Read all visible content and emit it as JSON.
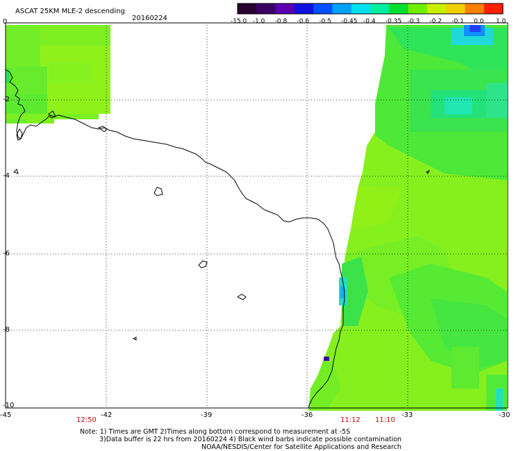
{
  "header": {
    "product": "ASCAT 25KM MLE-2 descending",
    "date": "20160224"
  },
  "colorbar": {
    "labels": [
      "-15.0",
      "-1.0",
      "-0.8",
      "-0.6",
      "-0.5",
      "-0.45",
      "-0.4",
      "-0.35",
      "-0.3",
      "-0.2",
      "-0.1",
      "0.0",
      "1.0"
    ],
    "colors": [
      "#2a0030",
      "#3a0066",
      "#5a00b0",
      "#1010e0",
      "#0050ff",
      "#00a0ff",
      "#00e0f0",
      "#00f0a0",
      "#00e030",
      "#70f000",
      "#c8f000",
      "#f0d000",
      "#ff8000",
      "#ff2000"
    ]
  },
  "axes": {
    "y_ticks": [
      "0",
      "-2",
      "-4",
      "-6",
      "-8",
      "-10"
    ],
    "x_ticks": [
      "-45",
      "-42",
      "-39",
      "-36",
      "-33",
      "-30"
    ]
  },
  "pass_times": [
    "12:50",
    "11:12",
    "11:10"
  ],
  "notes": [
    "Note: 1) Times are GMT 2)Times along bottom correspond to measurement at -5S",
    "3)Data buffer is 22 hrs from 20160224 4) Black wind barbs indicate possible contamination",
    "NOAA/NESDIS/Center for Satellite Applications and Research"
  ]
}
